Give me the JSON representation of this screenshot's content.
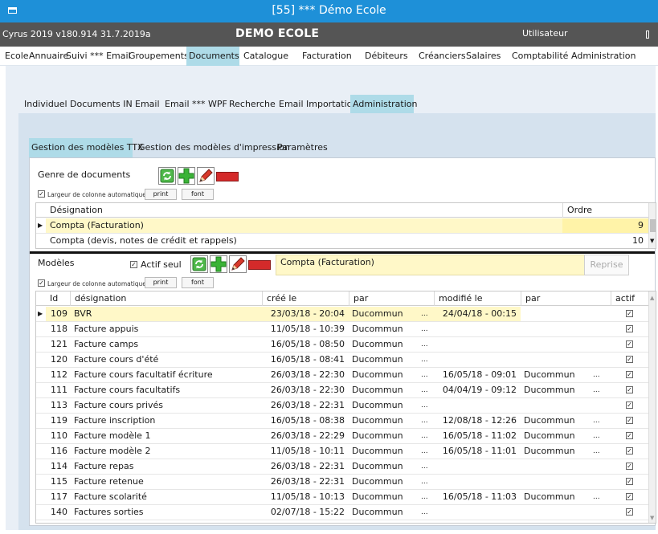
{
  "window": {
    "title": "[55] *** Démo Ecole"
  },
  "appbar": {
    "version": "Cyrus 2019 v180.914 31.7.2019a",
    "school": "DEMO ECOLE",
    "user": "Utilisateur"
  },
  "main_menu": [
    "Ecole",
    "Annuaire",
    "Suivi *** Email",
    "Groupements",
    "Documents",
    "Catalogue",
    "Facturation",
    "Débiteurs",
    "Créanciers",
    "Salaires",
    "Comptabilité",
    "Administration"
  ],
  "main_menu_active": "Documents",
  "sub_tabs": [
    "Individuel",
    "Documents IN",
    "Email",
    "Email *** WPF",
    "Recherche",
    "Email Importation",
    "Administration"
  ],
  "sub_tabs_active": "Administration",
  "inner_tabs": [
    "Gestion des modèles TTX",
    "Gestion des modèles d'impression",
    "Paramètres"
  ],
  "inner_tabs_active": "Gestion des modèles TTX",
  "genre": {
    "title": "Genre de documents",
    "autowidth": "Largeur de colonne automatique",
    "print": "print",
    "font": "font",
    "col_designation": "Désignation",
    "col_ordre": "Ordre",
    "rows": [
      {
        "designation": "Compta (Facturation)",
        "ordre": "9"
      },
      {
        "designation": "Compta (devis, notes de crédit et rappels)",
        "ordre": "10"
      }
    ]
  },
  "modeles": {
    "title": "Modèles",
    "actif_seul": "Actif seul",
    "selected_genre": "Compta (Facturation)",
    "reprise": "Reprise",
    "autowidth": "Largeur de colonne automatique",
    "print": "print",
    "font": "font",
    "columns": {
      "id": "Id",
      "designation": "désignation",
      "cree": "créé le",
      "par": "par",
      "modifie": "modifié le",
      "par2": "par",
      "actif": "actif"
    },
    "ellipsis": "...",
    "check": "✓",
    "rows": [
      {
        "id": "109",
        "designation": "BVR",
        "cree": "23/03/18 - 20:04",
        "par": "Ducommun",
        "modifie": "24/04/18 - 00:15",
        "par2": ""
      },
      {
        "id": "118",
        "designation": "Facture appuis",
        "cree": "11/05/18 - 10:39",
        "par": "Ducommun",
        "modifie": "",
        "par2": ""
      },
      {
        "id": "121",
        "designation": "Facture camps",
        "cree": "16/05/18 - 08:50",
        "par": "Ducommun",
        "modifie": "",
        "par2": ""
      },
      {
        "id": "120",
        "designation": "Facture cours d'été",
        "cree": "16/05/18 - 08:41",
        "par": "Ducommun",
        "modifie": "",
        "par2": ""
      },
      {
        "id": "112",
        "designation": "Facture cours facultatif écriture",
        "cree": "26/03/18 - 22:30",
        "par": "Ducommun",
        "modifie": "16/05/18 - 09:01",
        "par2": "Ducommun"
      },
      {
        "id": "111",
        "designation": "Facture cours facultatifs",
        "cree": "26/03/18 - 22:30",
        "par": "Ducommun",
        "modifie": "04/04/19 - 09:12",
        "par2": "Ducommun"
      },
      {
        "id": "113",
        "designation": "Facture cours privés",
        "cree": "26/03/18 - 22:31",
        "par": "Ducommun",
        "modifie": "",
        "par2": ""
      },
      {
        "id": "119",
        "designation": "Facture inscription",
        "cree": "16/05/18 - 08:38",
        "par": "Ducommun",
        "modifie": "12/08/18 - 12:26",
        "par2": "Ducommun"
      },
      {
        "id": "110",
        "designation": "Facture modèle 1",
        "cree": "26/03/18 - 22:29",
        "par": "Ducommun",
        "modifie": "16/05/18 - 11:02",
        "par2": "Ducommun"
      },
      {
        "id": "116",
        "designation": "Facture modèle 2",
        "cree": "11/05/18 - 10:11",
        "par": "Ducommun",
        "modifie": "16/05/18 - 11:01",
        "par2": "Ducommun"
      },
      {
        "id": "114",
        "designation": "Facture repas",
        "cree": "26/03/18 - 22:31",
        "par": "Ducommun",
        "modifie": "",
        "par2": ""
      },
      {
        "id": "115",
        "designation": "Facture retenue",
        "cree": "26/03/18 - 22:31",
        "par": "Ducommun",
        "modifie": "",
        "par2": ""
      },
      {
        "id": "117",
        "designation": "Facture scolarité",
        "cree": "11/05/18 - 10:13",
        "par": "Ducommun",
        "modifie": "16/05/18 - 11:03",
        "par2": "Ducommun"
      },
      {
        "id": "140",
        "designation": "Factures sorties",
        "cree": "02/07/18 - 15:22",
        "par": "Ducommun",
        "modifie": "",
        "par2": ""
      }
    ]
  },
  "icons": {
    "refresh": "refresh-icon",
    "add": "add-icon",
    "edit": "edit-icon",
    "delete": "delete-icon",
    "selected_row": "row-selector-arrow"
  },
  "colors": {
    "titlebar": "#1e90d8",
    "appbar": "#555555",
    "active_tab": "#aedbe8",
    "selected_row": "#fff8c8"
  }
}
